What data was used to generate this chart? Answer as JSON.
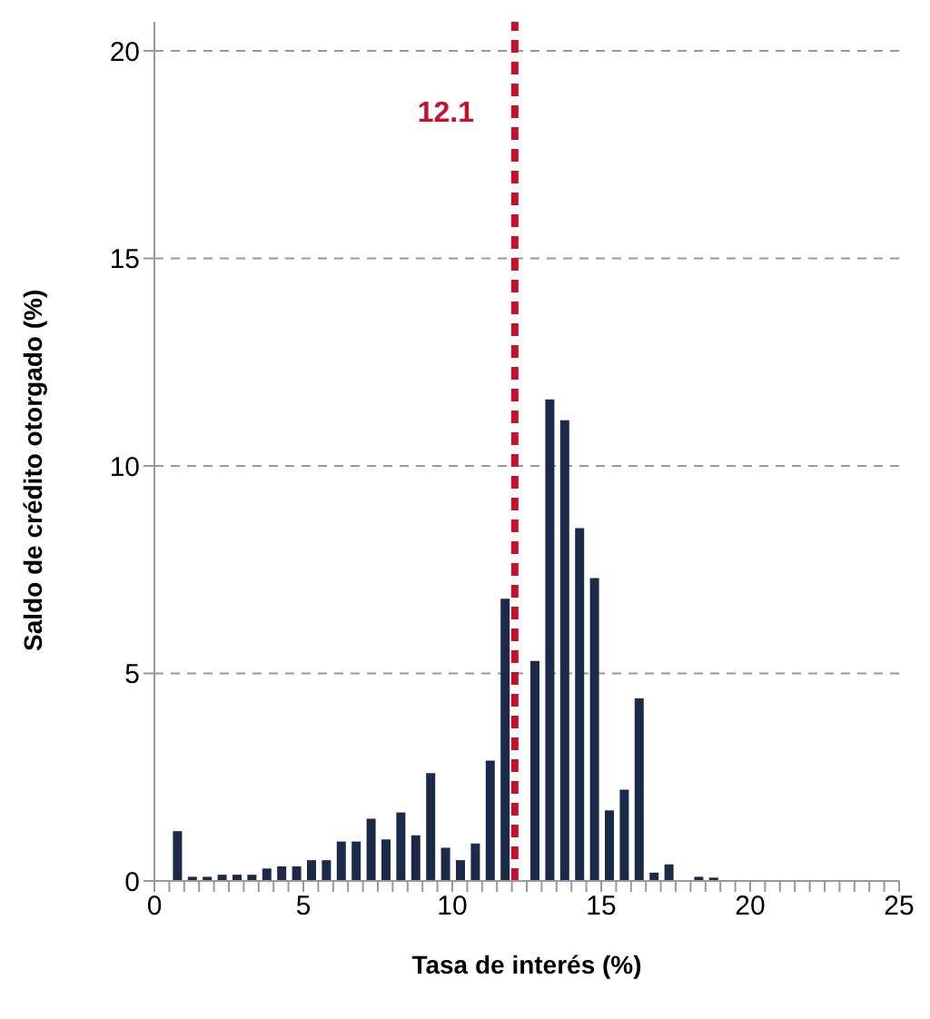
{
  "chart_data": {
    "type": "histogram",
    "xlabel": "Tasa de interés (%)",
    "ylabel": "Saldo de crédito otorgado (%)",
    "bins": [
      0,
      0.5,
      1,
      1.5,
      2,
      2.5,
      3,
      3.5,
      4,
      4.5,
      5,
      5.5,
      6,
      6.5,
      7,
      7.5,
      8,
      8.5,
      9,
      9.5,
      10,
      10.5,
      11,
      11.5,
      12,
      12.5,
      13,
      13.5,
      14,
      14.5,
      15,
      15.5,
      16,
      16.5,
      17,
      17.5,
      18,
      18.5,
      19,
      19.5,
      20,
      20.5,
      21,
      21.5,
      22,
      22.5,
      23,
      23.5,
      24,
      24.5,
      25
    ],
    "values": [
      0,
      1.2,
      0.1,
      0.1,
      0.15,
      0.15,
      0.15,
      0.3,
      0.35,
      0.35,
      0.5,
      0.5,
      0.95,
      0.95,
      1.5,
      1.0,
      1.65,
      1.1,
      2.6,
      0.8,
      0.5,
      0.9,
      2.9,
      6.8,
      null,
      5.3,
      11.6,
      11.1,
      8.5,
      7.3,
      1.7,
      2.2,
      4.4,
      0.2,
      0.4,
      0.02,
      0.1,
      0.08,
      0,
      0,
      0,
      0,
      0,
      0,
      0,
      0,
      0,
      0,
      0,
      0
    ],
    "color": "#1b2a49",
    "xlim": [
      0,
      25
    ],
    "xticks": [
      0,
      {
        "value": 0.5,
        "label": null
      },
      {
        "value": 1,
        "label": null
      },
      {
        "value": 1.5,
        "label": null
      },
      {
        "value": 2,
        "label": null
      },
      {
        "value": 2.5,
        "label": null
      },
      {
        "value": 3,
        "label": null
      },
      {
        "value": 3.5,
        "label": null
      },
      {
        "value": 4,
        "label": null
      },
      {
        "value": 4.5,
        "label": null
      },
      5,
      {
        "value": 5.5,
        "label": null
      },
      {
        "value": 6,
        "label": null
      },
      {
        "value": 6.5,
        "label": null
      },
      {
        "value": 7,
        "label": null
      },
      {
        "value": 7.5,
        "label": null
      },
      {
        "value": 8,
        "label": null
      },
      {
        "value": 8.5,
        "label": null
      },
      {
        "value": 9,
        "label": null
      },
      {
        "value": 9.5,
        "label": null
      },
      10,
      {
        "value": 10.5,
        "label": null
      },
      {
        "value": 11,
        "label": null
      },
      {
        "value": 11.5,
        "label": null
      },
      {
        "value": 12,
        "label": null
      },
      {
        "value": 12.5,
        "label": null
      },
      {
        "value": 13,
        "label": null
      },
      {
        "value": 13.5,
        "label": null
      },
      {
        "value": 14,
        "label": null
      },
      {
        "value": 14.5,
        "label": null
      },
      15,
      {
        "value": 15.5,
        "label": null
      },
      {
        "value": 16,
        "label": null
      },
      {
        "value": 16.5,
        "label": null
      },
      {
        "value": 17,
        "label": null
      },
      {
        "value": 17.5,
        "label": null
      },
      {
        "value": 18,
        "label": null
      },
      {
        "value": 18.5,
        "label": null
      },
      {
        "value": 19,
        "label": null
      },
      {
        "value": 19.5,
        "label": null
      },
      20,
      {
        "value": 20.5,
        "label": null
      },
      {
        "value": 21,
        "label": null
      },
      {
        "value": 21.5,
        "label": null
      },
      {
        "value": 22,
        "label": null
      },
      {
        "value": 22.5,
        "label": null
      },
      {
        "value": 23,
        "label": null
      },
      {
        "value": 23.5,
        "label": null
      },
      {
        "value": 24,
        "label": null
      },
      {
        "value": 24.5,
        "label": null
      },
      25
    ],
    "ylim": [
      0,
      20.7
    ],
    "yticks": [
      0,
      5,
      10,
      15,
      20
    ],
    "grid": "y",
    "ref_lines": [
      {
        "axis": "x",
        "value": 12.1,
        "label": "12.1",
        "color": "#c8102e",
        "line_style": "dashed"
      }
    ]
  }
}
